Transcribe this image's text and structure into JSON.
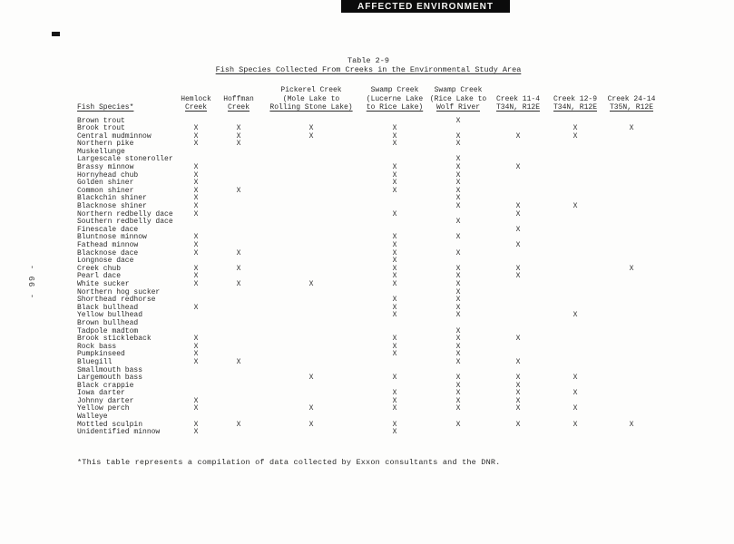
{
  "banner": {
    "label": "AFFECTED ENVIRONMENT"
  },
  "page_number": "- 99 -",
  "table": {
    "title_line1": "Table 2-9",
    "title_line2": "Fish Species Collected From Creeks in the Environmental Study Area",
    "species_header": "Fish Species*",
    "mark": "X",
    "columns": [
      {
        "id": "hemlock-creek",
        "lines": [
          "Hemlock",
          "Creek"
        ]
      },
      {
        "id": "hoffman-creek",
        "lines": [
          "Hoffman",
          "Creek"
        ]
      },
      {
        "id": "pickerel-creek",
        "lines": [
          "Pickerel Creek",
          "(Mole Lake to",
          "Rolling Stone Lake)"
        ]
      },
      {
        "id": "swamp-creek-lucerne",
        "lines": [
          "Swamp Creek",
          "(Lucerne Lake",
          "to Rice Lake)"
        ]
      },
      {
        "id": "swamp-creek-rice",
        "lines": [
          "Swamp Creek",
          "(Rice Lake to",
          "Wolf River"
        ]
      },
      {
        "id": "creek-11-4",
        "lines": [
          "Creek 11-4",
          "T34N, R12E"
        ]
      },
      {
        "id": "creek-12-9",
        "lines": [
          "Creek 12-9",
          "T34N, R12E"
        ]
      },
      {
        "id": "creek-24-14",
        "lines": [
          "Creek 24-14",
          "T35N, R12E"
        ]
      }
    ],
    "rows": [
      {
        "species": "Brown trout",
        "marks": [
          0,
          0,
          0,
          0,
          1,
          0,
          0,
          0
        ]
      },
      {
        "species": "Brook trout",
        "marks": [
          1,
          1,
          1,
          1,
          0,
          0,
          1,
          1
        ]
      },
      {
        "species": "Central mudminnow",
        "marks": [
          1,
          1,
          1,
          1,
          1,
          1,
          1,
          0
        ]
      },
      {
        "species": "Northern pike",
        "marks": [
          1,
          1,
          0,
          1,
          1,
          0,
          0,
          0
        ]
      },
      {
        "species": "Muskellunge",
        "marks": [
          0,
          0,
          0,
          0,
          0,
          0,
          0,
          0
        ]
      },
      {
        "species": "Largescale stoneroller",
        "marks": [
          0,
          0,
          0,
          0,
          1,
          0,
          0,
          0
        ]
      },
      {
        "species": "Brassy minnow",
        "marks": [
          1,
          0,
          0,
          1,
          1,
          1,
          0,
          0
        ]
      },
      {
        "species": "Hornyhead chub",
        "marks": [
          1,
          0,
          0,
          1,
          1,
          0,
          0,
          0
        ]
      },
      {
        "species": "Golden shiner",
        "marks": [
          1,
          0,
          0,
          1,
          1,
          0,
          0,
          0
        ]
      },
      {
        "species": "Common shiner",
        "marks": [
          1,
          1,
          0,
          1,
          1,
          0,
          0,
          0
        ]
      },
      {
        "species": "Blackchin shiner",
        "marks": [
          1,
          0,
          0,
          0,
          1,
          0,
          0,
          0
        ]
      },
      {
        "species": "Blacknose shiner",
        "marks": [
          1,
          0,
          0,
          0,
          1,
          1,
          1,
          0
        ]
      },
      {
        "species": "Northern redbelly dace",
        "marks": [
          1,
          0,
          0,
          1,
          0,
          1,
          0,
          0
        ]
      },
      {
        "species": "Southern redbelly dace",
        "marks": [
          0,
          0,
          0,
          0,
          1,
          0,
          0,
          0
        ]
      },
      {
        "species": "Finescale dace",
        "marks": [
          0,
          0,
          0,
          0,
          0,
          1,
          0,
          0
        ]
      },
      {
        "species": "Bluntnose minnow",
        "marks": [
          1,
          0,
          0,
          1,
          1,
          0,
          0,
          0
        ]
      },
      {
        "species": "Fathead minnow",
        "marks": [
          1,
          0,
          0,
          1,
          0,
          1,
          0,
          0
        ]
      },
      {
        "species": "Blacknose dace",
        "marks": [
          1,
          1,
          0,
          1,
          1,
          0,
          0,
          0
        ]
      },
      {
        "species": "Longnose dace",
        "marks": [
          0,
          0,
          0,
          1,
          0,
          0,
          0,
          0
        ]
      },
      {
        "species": "Creek chub",
        "marks": [
          1,
          1,
          0,
          1,
          1,
          1,
          0,
          1
        ]
      },
      {
        "species": "Pearl dace",
        "marks": [
          1,
          0,
          0,
          1,
          1,
          1,
          0,
          0
        ]
      },
      {
        "species": "White sucker",
        "marks": [
          1,
          1,
          1,
          1,
          1,
          0,
          0,
          0
        ]
      },
      {
        "species": "Northern hog sucker",
        "marks": [
          0,
          0,
          0,
          0,
          1,
          0,
          0,
          0
        ]
      },
      {
        "species": "Shorthead redhorse",
        "marks": [
          0,
          0,
          0,
          1,
          1,
          0,
          0,
          0
        ]
      },
      {
        "species": "Black bullhead",
        "marks": [
          1,
          0,
          0,
          1,
          1,
          0,
          0,
          0
        ]
      },
      {
        "species": "Yellow bullhead",
        "marks": [
          0,
          0,
          0,
          1,
          1,
          0,
          1,
          0
        ]
      },
      {
        "species": "Brown bullhead",
        "marks": [
          0,
          0,
          0,
          0,
          0,
          0,
          0,
          0
        ]
      },
      {
        "species": "Tadpole madtom",
        "marks": [
          0,
          0,
          0,
          0,
          1,
          0,
          0,
          0
        ]
      },
      {
        "species": "Brook stickleback",
        "marks": [
          1,
          0,
          0,
          1,
          1,
          1,
          0,
          0
        ]
      },
      {
        "species": "Rock bass",
        "marks": [
          1,
          0,
          0,
          1,
          1,
          0,
          0,
          0
        ]
      },
      {
        "species": "Pumpkinseed",
        "marks": [
          1,
          0,
          0,
          1,
          1,
          0,
          0,
          0
        ]
      },
      {
        "species": "Bluegill",
        "marks": [
          1,
          1,
          0,
          0,
          1,
          1,
          0,
          0
        ]
      },
      {
        "species": "Smallmouth bass",
        "marks": [
          0,
          0,
          0,
          0,
          0,
          0,
          0,
          0
        ]
      },
      {
        "species": "Largemouth bass",
        "marks": [
          0,
          0,
          1,
          1,
          1,
          1,
          1,
          0
        ]
      },
      {
        "species": "Black crappie",
        "marks": [
          0,
          0,
          0,
          0,
          1,
          1,
          0,
          0
        ]
      },
      {
        "species": "Iowa darter",
        "marks": [
          0,
          0,
          0,
          1,
          1,
          1,
          1,
          0
        ]
      },
      {
        "species": "Johnny darter",
        "marks": [
          1,
          0,
          0,
          1,
          1,
          1,
          0,
          0
        ]
      },
      {
        "species": "Yellow perch",
        "marks": [
          1,
          0,
          1,
          1,
          1,
          1,
          1,
          0
        ]
      },
      {
        "species": "Walleye",
        "marks": [
          0,
          0,
          0,
          0,
          0,
          0,
          0,
          0
        ]
      },
      {
        "species": "Mottled sculpin",
        "marks": [
          1,
          1,
          1,
          1,
          1,
          1,
          1,
          1
        ]
      },
      {
        "species": "Unidentified minnow",
        "marks": [
          1,
          0,
          0,
          1,
          0,
          0,
          0,
          0
        ]
      }
    ],
    "footnote": "*This table represents a compilation of data collected by Exxon consultants and the DNR."
  }
}
